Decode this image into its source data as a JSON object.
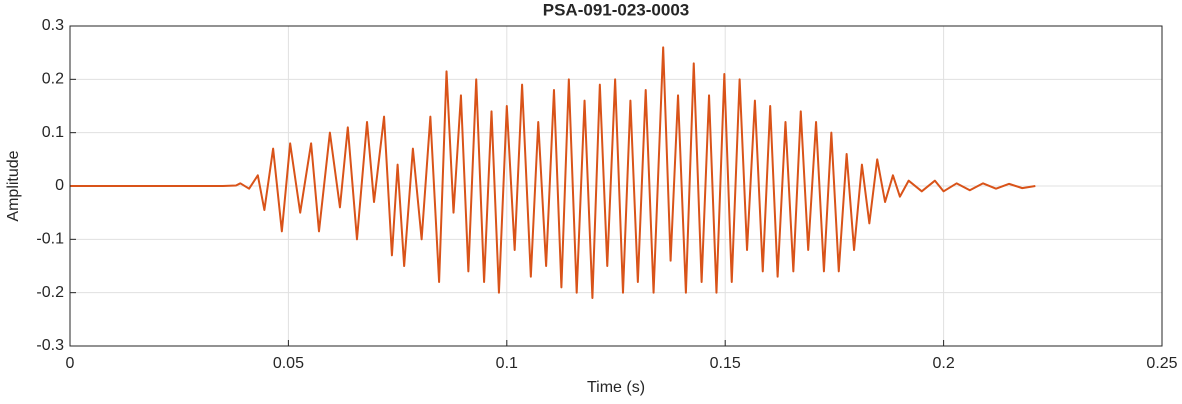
{
  "chart_data": {
    "type": "line",
    "title": "PSA-091-023-0003",
    "xlabel": "Time (s)",
    "ylabel": "Amplitude",
    "xlim": [
      0,
      0.25
    ],
    "ylim": [
      -0.3,
      0.3
    ],
    "xticks": [
      0,
      0.05,
      0.1,
      0.15,
      0.2,
      0.25
    ],
    "yticks": [
      -0.3,
      -0.2,
      -0.1,
      0,
      0.1,
      0.2,
      0.3
    ],
    "grid": true,
    "series": [
      {
        "name": "Amplitude",
        "color": "#d95319",
        "x": [
          0,
          0.035,
          0.038,
          0.039,
          0.041,
          0.043,
          0.0445,
          0.0465,
          0.0485,
          0.0504,
          0.0527,
          0.0552,
          0.057,
          0.0595,
          0.0618,
          0.0636,
          0.0657,
          0.068,
          0.0696,
          0.0719,
          0.0737,
          0.075,
          0.0765,
          0.0785,
          0.0805,
          0.0825,
          0.0845,
          0.0862,
          0.0878,
          0.0895,
          0.0912,
          0.093,
          0.0948,
          0.0965,
          0.0982,
          0.1,
          0.1018,
          0.1035,
          0.1055,
          0.1072,
          0.109,
          0.1108,
          0.1125,
          0.1142,
          0.116,
          0.1178,
          0.1196,
          0.1213,
          0.123,
          0.1248,
          0.1266,
          0.1283,
          0.13,
          0.1318,
          0.1336,
          0.1358,
          0.1375,
          0.1392,
          0.141,
          0.1428,
          0.1446,
          0.1463,
          0.148,
          0.1498,
          0.1515,
          0.1533,
          0.155,
          0.1568,
          0.1586,
          0.1603,
          0.162,
          0.1638,
          0.1656,
          0.1673,
          0.169,
          0.1708,
          0.1726,
          0.1743,
          0.176,
          0.1778,
          0.1795,
          0.1813,
          0.183,
          0.1848,
          0.1866,
          0.1884,
          0.19,
          0.192,
          0.195,
          0.198,
          0.2,
          0.203,
          0.206,
          0.209,
          0.212,
          0.215,
          0.218,
          0.221
        ],
        "values": [
          0,
          0,
          0.001,
          0.005,
          -0.005,
          0.02,
          -0.045,
          0.07,
          -0.085,
          0.08,
          -0.05,
          0.08,
          -0.085,
          0.1,
          -0.04,
          0.11,
          -0.1,
          0.12,
          -0.03,
          0.13,
          -0.13,
          0.04,
          -0.15,
          0.07,
          -0.1,
          0.13,
          -0.18,
          0.215,
          -0.05,
          0.17,
          -0.16,
          0.2,
          -0.18,
          0.14,
          -0.2,
          0.15,
          -0.12,
          0.19,
          -0.17,
          0.12,
          -0.15,
          0.18,
          -0.19,
          0.2,
          -0.2,
          0.16,
          -0.21,
          0.19,
          -0.15,
          0.2,
          -0.2,
          0.16,
          -0.18,
          0.18,
          -0.2,
          0.26,
          -0.14,
          0.17,
          -0.2,
          0.23,
          -0.18,
          0.17,
          -0.2,
          0.21,
          -0.18,
          0.2,
          -0.12,
          0.16,
          -0.16,
          0.15,
          -0.17,
          0.12,
          -0.16,
          0.14,
          -0.12,
          0.12,
          -0.16,
          0.1,
          -0.16,
          0.06,
          -0.12,
          0.04,
          -0.07,
          0.05,
          -0.03,
          0.02,
          -0.02,
          0.01,
          -0.01,
          0.01,
          -0.01,
          0.005,
          -0.008,
          0.005,
          -0.005,
          0.004,
          -0.004,
          0
        ]
      }
    ]
  }
}
